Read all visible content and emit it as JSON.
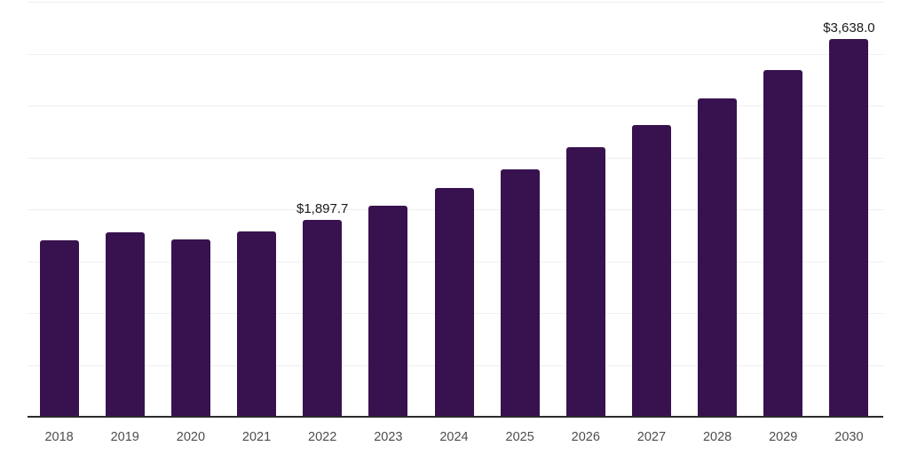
{
  "chart": {
    "colors": {
      "bar": "#38124f",
      "gridline": "#efefef",
      "axis": "#2b2b2b",
      "tick_label": "#4d4d4d",
      "data_label": "#1a1a1a",
      "background": "#ffffff"
    }
  },
  "chart_data": {
    "type": "bar",
    "title": "",
    "xlabel": "",
    "ylabel": "",
    "categories": [
      "2018",
      "2019",
      "2020",
      "2021",
      "2022",
      "2023",
      "2024",
      "2025",
      "2026",
      "2027",
      "2028",
      "2029",
      "2030"
    ],
    "values": [
      1700,
      1777,
      1712,
      1790,
      1897.7,
      2033,
      2204,
      2386,
      2598,
      2812,
      3068,
      3340,
      3638
    ],
    "data_labels": [
      {
        "index": 4,
        "text": "$1,897.7"
      },
      {
        "index": 12,
        "text": "$3,638.0"
      }
    ],
    "ylim": [
      0,
      4000
    ],
    "gridline_step": 500,
    "grid": true,
    "legend": false,
    "y_axis_tick_labels_visible": false
  }
}
